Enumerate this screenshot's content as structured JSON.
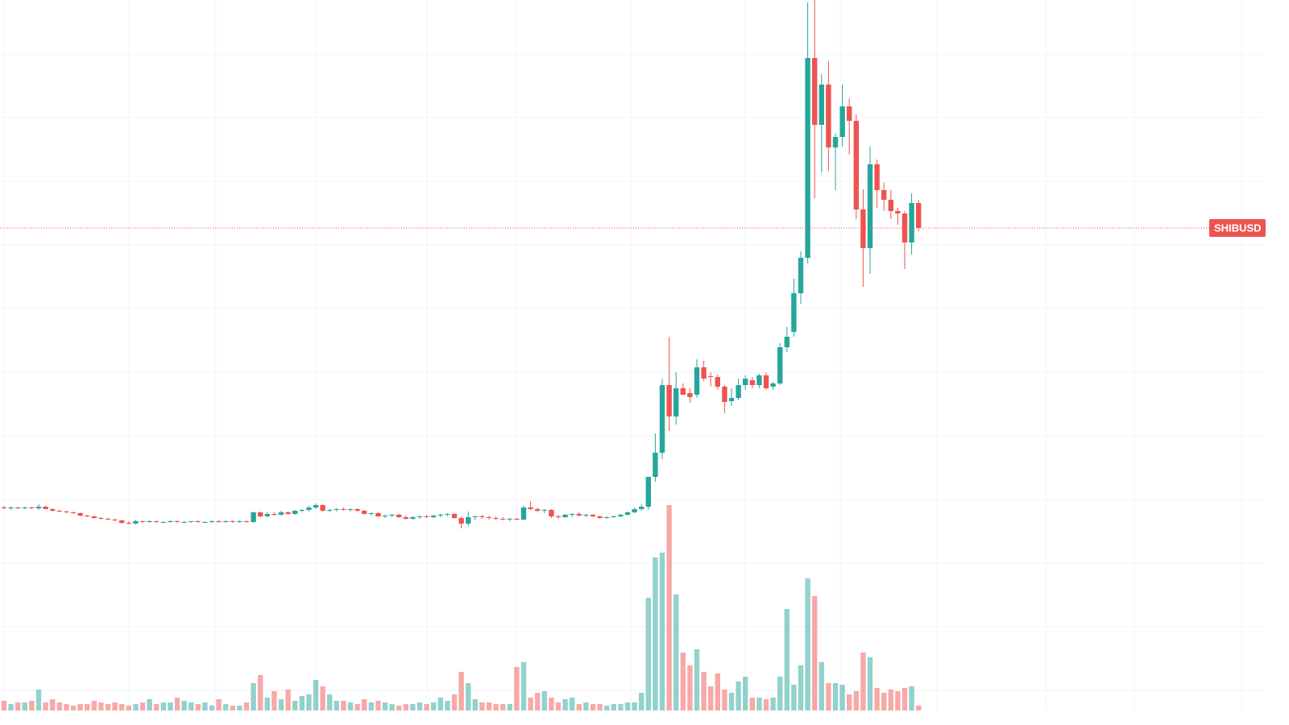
{
  "chart_data": {
    "type": "candlestick",
    "symbol_label": "SHIBUSD",
    "last_price": 599,
    "ylim": [
      0,
      882
    ],
    "up_color": "#26a69a",
    "down_color": "#ef5350",
    "volume_up_color": "#26a69a",
    "volume_down_color": "#ef5350",
    "grid": true,
    "ohlc": [
      [
        252,
        254,
        250,
        251
      ],
      [
        251,
        253,
        249,
        252
      ],
      [
        252,
        253,
        250,
        251
      ],
      [
        251,
        253,
        250,
        252
      ],
      [
        252,
        253,
        250,
        251
      ],
      [
        251,
        256,
        249,
        253
      ],
      [
        253,
        254,
        250,
        250
      ],
      [
        250,
        251,
        247,
        248
      ],
      [
        248,
        249,
        246,
        247
      ],
      [
        247,
        248,
        245,
        246
      ],
      [
        246,
        247,
        244,
        245
      ],
      [
        245,
        246,
        241,
        242
      ],
      [
        242,
        243,
        240,
        241
      ],
      [
        241,
        242,
        238,
        239
      ],
      [
        239,
        240,
        237,
        238
      ],
      [
        238,
        239,
        236,
        237
      ],
      [
        237,
        238,
        235,
        236
      ],
      [
        236,
        237,
        232,
        233
      ],
      [
        233,
        235,
        231,
        232
      ],
      [
        232,
        237,
        231,
        235
      ],
      [
        235,
        236,
        233,
        234
      ],
      [
        234,
        236,
        233,
        235
      ],
      [
        235,
        236,
        233,
        234
      ],
      [
        234,
        235,
        233,
        234
      ],
      [
        234,
        236,
        233,
        235
      ],
      [
        235,
        236,
        233,
        234
      ],
      [
        234,
        235,
        233,
        234
      ],
      [
        234,
        235,
        233,
        235
      ],
      [
        235,
        236,
        233,
        234
      ],
      [
        234,
        235,
        233,
        234
      ],
      [
        234,
        236,
        233,
        235
      ],
      [
        235,
        236,
        233,
        234
      ],
      [
        234,
        236,
        233,
        235
      ],
      [
        235,
        236,
        233,
        234
      ],
      [
        234,
        236,
        233,
        235
      ],
      [
        235,
        236,
        233,
        234
      ],
      [
        234,
        247,
        233,
        246
      ],
      [
        246,
        247,
        240,
        241
      ],
      [
        241,
        246,
        240,
        244
      ],
      [
        244,
        246,
        242,
        243
      ],
      [
        243,
        248,
        242,
        246
      ],
      [
        246,
        247,
        243,
        244
      ],
      [
        244,
        249,
        243,
        248
      ],
      [
        248,
        250,
        246,
        249
      ],
      [
        249,
        254,
        247,
        252
      ],
      [
        252,
        257,
        250,
        255
      ],
      [
        255,
        256,
        247,
        248
      ],
      [
        248,
        250,
        246,
        249
      ],
      [
        249,
        251,
        247,
        250
      ],
      [
        250,
        252,
        248,
        249
      ],
      [
        249,
        251,
        247,
        250
      ],
      [
        250,
        251,
        247,
        248
      ],
      [
        248,
        249,
        243,
        244
      ],
      [
        244,
        246,
        242,
        245
      ],
      [
        245,
        246,
        240,
        241
      ],
      [
        241,
        243,
        239,
        242
      ],
      [
        242,
        244,
        240,
        243
      ],
      [
        243,
        244,
        239,
        240
      ],
      [
        240,
        242,
        237,
        238
      ],
      [
        238,
        241,
        237,
        240
      ],
      [
        240,
        242,
        238,
        241
      ],
      [
        241,
        243,
        239,
        240
      ],
      [
        240,
        243,
        239,
        242
      ],
      [
        242,
        244,
        240,
        243
      ],
      [
        243,
        245,
        241,
        244
      ],
      [
        244,
        245,
        238,
        239
      ],
      [
        239,
        241,
        226,
        232
      ],
      [
        232,
        247,
        229,
        240
      ],
      [
        240,
        242,
        236,
        241
      ],
      [
        241,
        243,
        238,
        240
      ],
      [
        240,
        242,
        237,
        239
      ],
      [
        239,
        241,
        236,
        238
      ],
      [
        238,
        240,
        236,
        237
      ],
      [
        237,
        239,
        235,
        238
      ],
      [
        238,
        239,
        236,
        237
      ],
      [
        237,
        254,
        236,
        252
      ],
      [
        252,
        260,
        249,
        250
      ],
      [
        250,
        252,
        246,
        248
      ],
      [
        248,
        250,
        245,
        249
      ],
      [
        249,
        250,
        239,
        241
      ],
      [
        241,
        243,
        238,
        240
      ],
      [
        240,
        244,
        239,
        243
      ],
      [
        243,
        245,
        240,
        244
      ],
      [
        244,
        246,
        241,
        242
      ],
      [
        242,
        244,
        240,
        243
      ],
      [
        243,
        244,
        240,
        241
      ],
      [
        241,
        242,
        238,
        239
      ],
      [
        239,
        241,
        238,
        240
      ],
      [
        240,
        242,
        239,
        241
      ],
      [
        241,
        244,
        240,
        243
      ],
      [
        243,
        247,
        242,
        246
      ],
      [
        246,
        252,
        245,
        250
      ],
      [
        250,
        256,
        248,
        253
      ],
      [
        253,
        290,
        249,
        290
      ],
      [
        290,
        344,
        284,
        320
      ],
      [
        320,
        412,
        312,
        404
      ],
      [
        404,
        464,
        347,
        365
      ],
      [
        365,
        420,
        355,
        400
      ],
      [
        400,
        406,
        392,
        392
      ],
      [
        394,
        400,
        382,
        389
      ],
      [
        392,
        436,
        388,
        426
      ],
      [
        426,
        434,
        409,
        412
      ],
      [
        415,
        420,
        402,
        414
      ],
      [
        414,
        417,
        398,
        402
      ],
      [
        402,
        404,
        369,
        383
      ],
      [
        384,
        400,
        378,
        388
      ],
      [
        388,
        412,
        385,
        404
      ],
      [
        404,
        416,
        398,
        412
      ],
      [
        410,
        414,
        400,
        404
      ],
      [
        404,
        418,
        400,
        416
      ],
      [
        416,
        420,
        398,
        400
      ],
      [
        402,
        408,
        398,
        406
      ],
      [
        406,
        456,
        404,
        451
      ],
      [
        451,
        476,
        445,
        464
      ],
      [
        470,
        536,
        464,
        518
      ],
      [
        518,
        570,
        505,
        562
      ],
      [
        562,
        879,
        555,
        810
      ],
      [
        810,
        882,
        636,
        727
      ],
      [
        727,
        790,
        668,
        777
      ],
      [
        777,
        806,
        670,
        699
      ],
      [
        699,
        716,
        646,
        712
      ],
      [
        712,
        777,
        700,
        750
      ],
      [
        750,
        760,
        690,
        732
      ],
      [
        732,
        740,
        610,
        622
      ],
      [
        622,
        647,
        526,
        574
      ],
      [
        574,
        700,
        542,
        678
      ],
      [
        678,
        684,
        624,
        646
      ],
      [
        646,
        655,
        620,
        634
      ],
      [
        634,
        646,
        610,
        620
      ],
      [
        620,
        624,
        603,
        617
      ],
      [
        617,
        620,
        548,
        581
      ],
      [
        581,
        642,
        566,
        630
      ],
      [
        630,
        634,
        595,
        599
      ]
    ],
    "volume": [
      12,
      8,
      10,
      10,
      12,
      26,
      10,
      14,
      10,
      8,
      6,
      8,
      8,
      12,
      10,
      8,
      10,
      8,
      6,
      8,
      10,
      14,
      8,
      10,
      10,
      16,
      12,
      10,
      8,
      10,
      6,
      14,
      8,
      6,
      6,
      10,
      34,
      44,
      16,
      24,
      14,
      26,
      12,
      18,
      20,
      38,
      30,
      20,
      12,
      12,
      10,
      8,
      14,
      10,
      12,
      10,
      8,
      6,
      8,
      8,
      10,
      8,
      10,
      16,
      12,
      20,
      48,
      34,
      14,
      10,
      10,
      8,
      8,
      8,
      54,
      60,
      16,
      22,
      24,
      16,
      10,
      14,
      16,
      8,
      10,
      8,
      8,
      6,
      8,
      8,
      10,
      10,
      22,
      140,
      190,
      196,
      255,
      144,
      72,
      56,
      76,
      48,
      30,
      46,
      26,
      22,
      36,
      42,
      16,
      16,
      14,
      16,
      42,
      126,
      32,
      56,
      164,
      142,
      60,
      34,
      34,
      32,
      20,
      24,
      72,
      66,
      28,
      22,
      26,
      24,
      28,
      30,
      6
    ]
  }
}
